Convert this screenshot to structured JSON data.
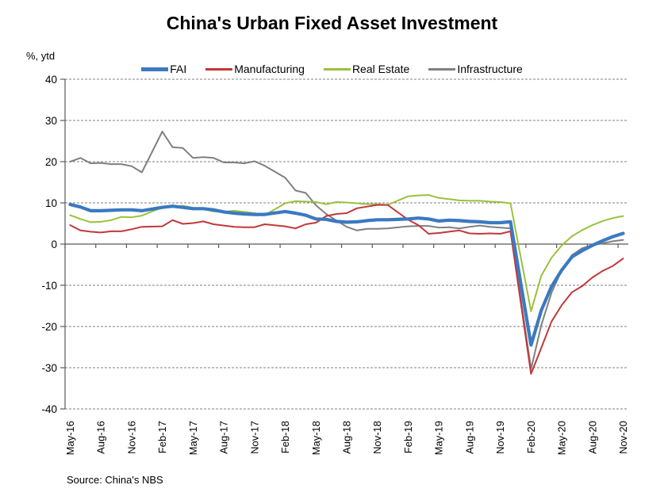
{
  "title": "China's Urban Fixed Asset Investment",
  "axis_unit_label": "%, ytd",
  "source": "Source: China's NBS",
  "colors": {
    "fai": "#3B79C2",
    "manufacturing": "#C0383B",
    "real_estate": "#9BC13C",
    "infrastructure": "#808080",
    "axis": "#595959",
    "gridline": "#808080"
  },
  "legend": [
    {
      "label": "FAI",
      "color": "#3B79C2",
      "swatch_thickness": 5
    },
    {
      "label": "Manufacturing",
      "color": "#C0383B",
      "swatch_thickness": 3
    },
    {
      "label": "Real Estate",
      "color": "#9BC13C",
      "swatch_thickness": 3
    },
    {
      "label": "Infrastructure",
      "color": "#808080",
      "swatch_thickness": 3
    }
  ],
  "chart_data": {
    "type": "line",
    "title": "China's Urban Fixed Asset Investment",
    "xlabel": "",
    "ylabel": "%, ytd",
    "ylim": [
      -40,
      40
    ],
    "ytick_step": 10,
    "yticks": [
      40,
      30,
      20,
      10,
      0,
      -10,
      -20,
      -30,
      -40
    ],
    "grid": true,
    "legend_position": "top",
    "x_tick_labels": [
      "May-16",
      "Aug-16",
      "Nov-16",
      "Feb-17",
      "May-17",
      "Aug-17",
      "Nov-17",
      "Feb-18",
      "May-18",
      "Aug-18",
      "Nov-18",
      "Feb-19",
      "May-19",
      "Aug-19",
      "Nov-19",
      "Feb-20",
      "May-20",
      "Aug-20",
      "Nov-20"
    ],
    "x_tick_offsets": [
      0,
      3,
      6,
      9,
      12,
      15,
      18,
      21,
      24,
      27,
      30,
      33,
      36,
      39,
      42,
      45,
      48,
      51,
      54
    ],
    "month_span": 55,
    "categories": [
      "May-16",
      "Jun-16",
      "Jul-16",
      "Aug-16",
      "Sep-16",
      "Oct-16",
      "Nov-16",
      "Dec-16",
      "Feb-17",
      "Mar-17",
      "Apr-17",
      "May-17",
      "Jun-17",
      "Jul-17",
      "Aug-17",
      "Sep-17",
      "Oct-17",
      "Nov-17",
      "Dec-17",
      "Feb-18",
      "Mar-18",
      "Apr-18",
      "May-18",
      "Jun-18",
      "Jul-18",
      "Aug-18",
      "Sep-18",
      "Oct-18",
      "Nov-18",
      "Dec-18",
      "Feb-19",
      "Mar-19",
      "Apr-19",
      "May-19",
      "Jun-19",
      "Jul-19",
      "Aug-19",
      "Sep-19",
      "Oct-19",
      "Nov-19",
      "Dec-19",
      "Feb-20",
      "Mar-20",
      "Apr-20",
      "May-20",
      "Jun-20",
      "Jul-20",
      "Aug-20",
      "Sep-20",
      "Oct-20",
      "Nov-20"
    ],
    "month_offsets": [
      0,
      1,
      2,
      3,
      4,
      5,
      6,
      7,
      9,
      10,
      11,
      12,
      13,
      14,
      15,
      16,
      17,
      18,
      19,
      21,
      22,
      23,
      24,
      25,
      26,
      27,
      28,
      29,
      30,
      31,
      33,
      34,
      35,
      36,
      37,
      38,
      39,
      40,
      41,
      42,
      43,
      45,
      46,
      47,
      48,
      49,
      50,
      51,
      52,
      53,
      54
    ],
    "series": [
      {
        "name": "Infrastructure",
        "color": "#808080",
        "line_width": 2,
        "values": [
          20.0,
          20.9,
          19.6,
          19.7,
          19.4,
          19.4,
          18.9,
          17.4,
          27.3,
          23.5,
          23.3,
          20.9,
          21.1,
          20.9,
          19.8,
          19.8,
          19.6,
          20.1,
          19.0,
          16.1,
          13.0,
          12.4,
          9.4,
          7.3,
          5.7,
          4.2,
          3.3,
          3.7,
          3.7,
          3.8,
          4.3,
          4.4,
          4.4,
          4.0,
          4.1,
          3.8,
          4.2,
          4.5,
          4.2,
          4.0,
          3.8,
          -30.3,
          -19.7,
          -11.8,
          -6.3,
          -2.7,
          -1.0,
          -0.3,
          0.2,
          0.7,
          1.0
        ]
      },
      {
        "name": "Real Estate",
        "color": "#9BC13C",
        "line_width": 2,
        "values": [
          7.0,
          6.1,
          5.3,
          5.4,
          5.8,
          6.6,
          6.5,
          6.9,
          8.9,
          9.1,
          9.3,
          8.8,
          8.5,
          7.9,
          7.8,
          8.1,
          7.8,
          7.5,
          7.0,
          9.9,
          10.4,
          10.3,
          10.2,
          9.7,
          10.2,
          10.1,
          9.9,
          9.7,
          9.7,
          9.5,
          11.6,
          11.8,
          11.9,
          11.2,
          10.9,
          10.6,
          10.5,
          10.5,
          10.3,
          10.2,
          9.9,
          -16.3,
          -7.7,
          -3.3,
          -0.3,
          1.9,
          3.4,
          4.6,
          5.6,
          6.3,
          6.8
        ]
      },
      {
        "name": "Manufacturing",
        "color": "#C0383B",
        "line_width": 2,
        "values": [
          4.6,
          3.3,
          3.0,
          2.8,
          3.1,
          3.1,
          3.6,
          4.2,
          4.3,
          5.8,
          4.9,
          5.1,
          5.5,
          4.8,
          4.5,
          4.2,
          4.1,
          4.1,
          4.8,
          4.3,
          3.8,
          4.8,
          5.2,
          6.8,
          7.3,
          7.5,
          8.7,
          9.1,
          9.5,
          9.5,
          5.9,
          4.6,
          2.5,
          2.7,
          3.0,
          3.3,
          2.6,
          2.5,
          2.6,
          2.5,
          3.1,
          -31.5,
          -25.2,
          -18.8,
          -14.8,
          -11.7,
          -10.2,
          -8.1,
          -6.5,
          -5.3,
          -3.5
        ]
      },
      {
        "name": "FAI",
        "color": "#3B79C2",
        "line_width": 4.2,
        "values": [
          9.6,
          9.0,
          8.1,
          8.1,
          8.2,
          8.3,
          8.3,
          8.1,
          8.9,
          9.2,
          8.9,
          8.6,
          8.6,
          8.3,
          7.8,
          7.5,
          7.3,
          7.2,
          7.2,
          7.9,
          7.5,
          7.0,
          6.1,
          6.0,
          5.5,
          5.3,
          5.4,
          5.7,
          5.9,
          5.9,
          6.1,
          6.3,
          6.1,
          5.6,
          5.8,
          5.7,
          5.5,
          5.4,
          5.2,
          5.2,
          5.4,
          -24.5,
          -16.1,
          -10.3,
          -6.3,
          -3.1,
          -1.6,
          -0.3,
          0.8,
          1.8,
          2.6
        ]
      }
    ]
  }
}
